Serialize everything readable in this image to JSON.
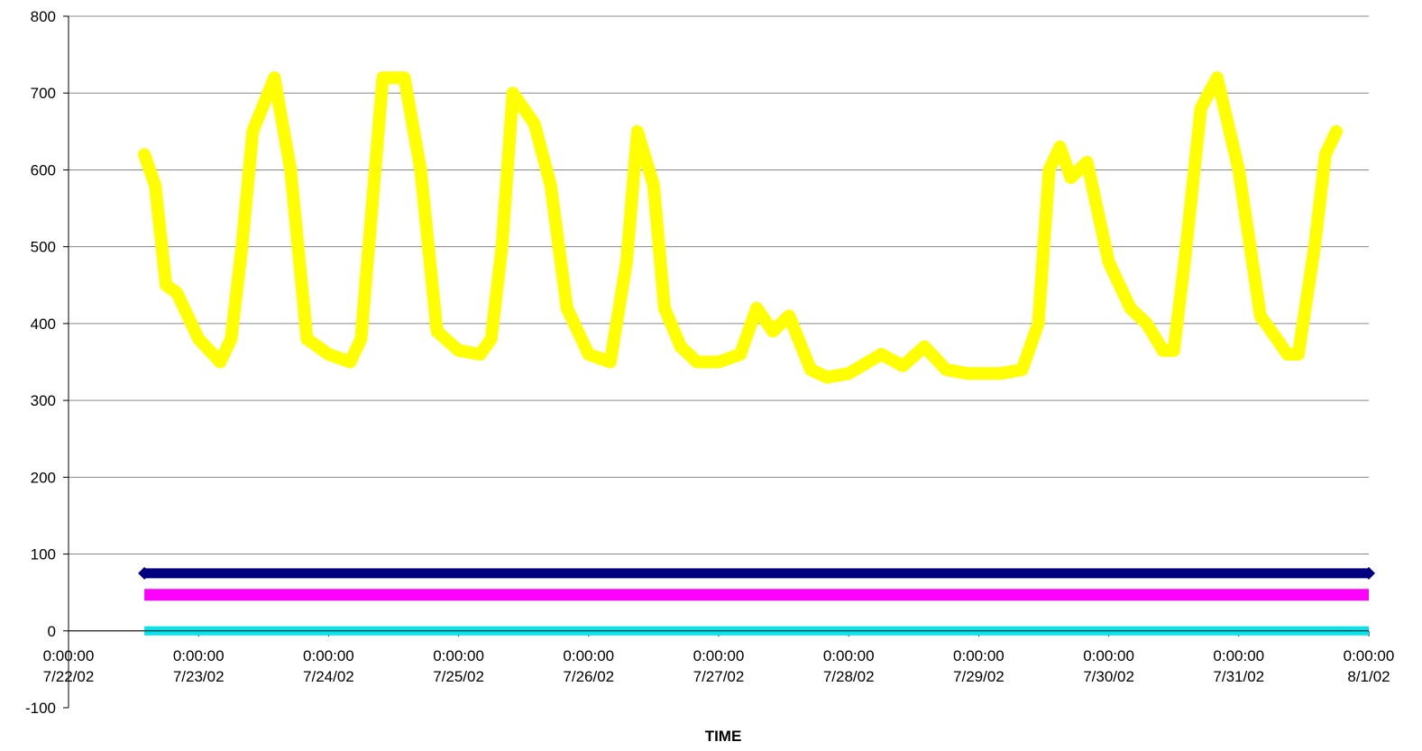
{
  "chart_data": {
    "type": "line",
    "title": "",
    "xlabel": "TIME",
    "ylabel": "",
    "ylim": [
      -100,
      800
    ],
    "xlim": [
      "7/22/02 0:00:00",
      "8/1/02 0:00:00"
    ],
    "grid": "horizontal",
    "legend": "none",
    "y_ticks": [
      "-100",
      "0",
      "100",
      "200",
      "300",
      "400",
      "500",
      "600",
      "700",
      "800"
    ],
    "x_ticks": [
      {
        "time": "0:00:00",
        "date": "7/22/02"
      },
      {
        "time": "0:00:00",
        "date": "7/23/02"
      },
      {
        "time": "0:00:00",
        "date": "7/24/02"
      },
      {
        "time": "0:00:00",
        "date": "7/25/02"
      },
      {
        "time": "0:00:00",
        "date": "7/26/02"
      },
      {
        "time": "0:00:00",
        "date": "7/27/02"
      },
      {
        "time": "0:00:00",
        "date": "7/28/02"
      },
      {
        "time": "0:00:00",
        "date": "7/29/02"
      },
      {
        "time": "0:00:00",
        "date": "7/30/02"
      },
      {
        "time": "0:00:00",
        "date": "7/31/02"
      },
      {
        "time": "0:00:00",
        "date": "8/1/02"
      }
    ],
    "series": [
      {
        "color": "#ffff00",
        "marker": "triangle",
        "x": [
          "7/22/02 14:00",
          "7/22/02 16:00",
          "7/22/02 18:00",
          "7/22/02 20:00",
          "7/23/02 0:00",
          "7/23/02 4:00",
          "7/23/02 6:00",
          "7/23/02 8:00",
          "7/23/02 10:00",
          "7/23/02 14:00",
          "7/23/02 17:00",
          "7/23/02 20:00",
          "7/24/02 0:00",
          "7/24/02 4:00",
          "7/24/02 6:00",
          "7/24/02 8:00",
          "7/24/02 10:00",
          "7/24/02 14:00",
          "7/24/02 17:00",
          "7/24/02 20:00",
          "7/25/02 0:00",
          "7/25/02 4:00",
          "7/25/02 6:00",
          "7/25/02 8:00",
          "7/25/02 10:00",
          "7/25/02 14:00",
          "7/25/02 17:00",
          "7/25/02 20:00",
          "7/26/02 0:00",
          "7/26/02 4:00",
          "7/26/02 7:00",
          "7/26/02 9:00",
          "7/26/02 12:00",
          "7/26/02 14:00",
          "7/26/02 17:00",
          "7/26/02 20:00",
          "7/27/02 0:00",
          "7/27/02 4:00",
          "7/27/02 7:00",
          "7/27/02 10:00",
          "7/27/02 13:00",
          "7/27/02 17:00",
          "7/27/02 20:00",
          "7/28/02 0:00",
          "7/28/02 6:00",
          "7/28/02 10:00",
          "7/28/02 14:00",
          "7/28/02 18:00",
          "7/28/02 22:00",
          "7/29/02 4:00",
          "7/29/02 8:00",
          "7/29/02 11:00",
          "7/29/02 13:00",
          "7/29/02 15:00",
          "7/29/02 17:00",
          "7/29/02 20:00",
          "7/30/02 0:00",
          "7/30/02 4:00",
          "7/30/02 7:00",
          "7/30/02 10:00",
          "7/30/02 12:00",
          "7/30/02 14:00",
          "7/30/02 17:00",
          "7/30/02 20:00",
          "7/31/02 0:00",
          "7/31/02 4:00",
          "7/31/02 6:00",
          "7/31/02 9:00",
          "7/31/02 11:00",
          "7/31/02 14:00",
          "7/31/02 16:00",
          "7/31/02 18:00"
        ],
        "y": [
          620,
          580,
          450,
          440,
          380,
          350,
          380,
          500,
          650,
          720,
          600,
          380,
          360,
          350,
          380,
          550,
          720,
          720,
          600,
          390,
          365,
          360,
          380,
          500,
          700,
          660,
          580,
          420,
          360,
          350,
          480,
          650,
          580,
          420,
          370,
          350,
          350,
          360,
          420,
          390,
          410,
          340,
          330,
          335,
          360,
          345,
          370,
          340,
          335,
          335,
          340,
          400,
          600,
          630,
          590,
          610,
          480,
          420,
          400,
          365,
          365,
          480,
          680,
          720,
          600,
          410,
          390,
          360,
          360,
          500,
          620,
          650
        ]
      },
      {
        "color": "#000080",
        "marker": "diamond",
        "x": [
          "7/22/02 14:00",
          "8/1/02 0:00"
        ],
        "y": [
          75,
          75
        ]
      },
      {
        "color": "#ff00ff",
        "marker": "square",
        "x": [
          "7/22/02 14:00",
          "8/1/02 0:00"
        ],
        "y": [
          47,
          47
        ]
      },
      {
        "color": "#00e5ee",
        "marker": "x",
        "x": [
          "7/22/02 14:00",
          "8/1/02 0:00"
        ],
        "y": [
          0,
          0
        ]
      }
    ]
  }
}
